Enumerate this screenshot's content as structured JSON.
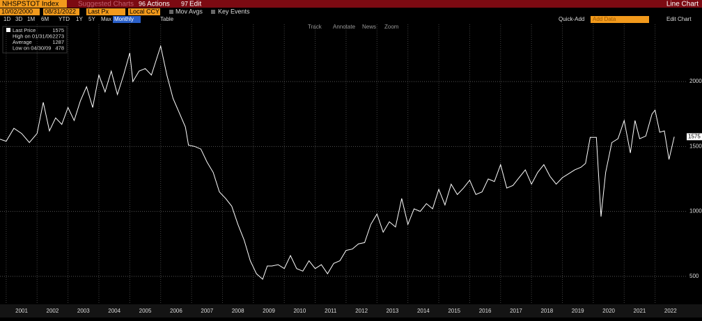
{
  "toolbar": {
    "ticker": "NHSPSTOT Index",
    "suggested": "Suggested Charts",
    "actions_num": "96",
    "actions": "Actions",
    "edit_num": "97",
    "edit": "Edit",
    "view": "Line Chart"
  },
  "controls": {
    "start": "10/02/2000",
    "end": "08/31/2022",
    "field": "Last Px",
    "currency": "Local CCY",
    "mov_avgs": "Mov Avgs",
    "key_events": "Key Events",
    "ranges": [
      "1D",
      "3D",
      "1M",
      "6M",
      "YTD",
      "1Y",
      "5Y",
      "Max"
    ],
    "period": "Monthly",
    "table": "Table",
    "quick_add": "Quick-Add",
    "add_data": "Add Data",
    "edit_chart": "Edit Chart",
    "tools": [
      "Track",
      "Annotate",
      "News",
      "Zoom"
    ]
  },
  "chart_data": {
    "type": "line",
    "legend": [
      {
        "label": "Last Price",
        "value": 1575
      },
      {
        "label": "High on 01/31/06",
        "value": 2273
      },
      {
        "label": "Average",
        "value": 1287
      },
      {
        "label": "Low on 04/30/09",
        "value": 478
      }
    ],
    "series": [
      {
        "color": "#ffffff",
        "x": [
          2000.75,
          2001.0,
          2001.25,
          2001.5,
          2001.75,
          2002.0,
          2002.2,
          2002.4,
          2002.6,
          2002.8,
          2003.0,
          2003.2,
          2003.4,
          2003.6,
          2003.8,
          2004.0,
          2004.2,
          2004.4,
          2004.6,
          2004.8,
          2005.0,
          2005.1,
          2005.3,
          2005.5,
          2005.7,
          2006.0,
          2006.2,
          2006.4,
          2006.6,
          2006.8,
          2006.9,
          2007.1,
          2007.3,
          2007.5,
          2007.7,
          2007.9,
          2008.1,
          2008.3,
          2008.5,
          2008.7,
          2008.9,
          2009.1,
          2009.3,
          2009.45,
          2009.6,
          2009.8,
          2010.0,
          2010.2,
          2010.4,
          2010.6,
          2010.8,
          2011.0,
          2011.2,
          2011.4,
          2011.6,
          2011.8,
          2012.0,
          2012.2,
          2012.4,
          2012.6,
          2012.8,
          2013.0,
          2013.2,
          2013.4,
          2013.6,
          2013.8,
          2014.0,
          2014.2,
          2014.4,
          2014.6,
          2014.8,
          2015.0,
          2015.2,
          2015.4,
          2015.6,
          2015.8,
          2016.0,
          2016.2,
          2016.4,
          2016.6,
          2016.8,
          2017.0,
          2017.2,
          2017.4,
          2017.6,
          2017.8,
          2018.0,
          2018.2,
          2018.4,
          2018.6,
          2018.8,
          2019.0,
          2019.2,
          2019.4,
          2019.6,
          2019.75,
          2019.9,
          2020.1,
          2020.25,
          2020.4,
          2020.6,
          2020.8,
          2021.0,
          2021.2,
          2021.35,
          2021.5,
          2021.7,
          2021.9,
          2022.0,
          2022.15,
          2022.3,
          2022.45,
          2022.62
        ],
        "values": [
          1560,
          1540,
          1640,
          1600,
          1530,
          1600,
          1840,
          1620,
          1720,
          1670,
          1800,
          1700,
          1850,
          1960,
          1800,
          2050,
          1920,
          2080,
          1900,
          2050,
          2220,
          2000,
          2080,
          2100,
          2050,
          2273,
          2050,
          1870,
          1760,
          1650,
          1510,
          1500,
          1480,
          1380,
          1300,
          1150,
          1100,
          1040,
          900,
          780,
          620,
          520,
          478,
          580,
          580,
          590,
          560,
          660,
          560,
          540,
          620,
          560,
          590,
          520,
          600,
          620,
          700,
          710,
          750,
          760,
          900,
          980,
          840,
          920,
          880,
          1100,
          900,
          1020,
          1000,
          1060,
          1020,
          1170,
          1050,
          1210,
          1130,
          1180,
          1240,
          1130,
          1150,
          1250,
          1230,
          1360,
          1180,
          1200,
          1260,
          1320,
          1210,
          1300,
          1360,
          1270,
          1210,
          1260,
          1290,
          1320,
          1340,
          1370,
          1570,
          1570,
          960,
          1300,
          1530,
          1560,
          1700,
          1450,
          1700,
          1560,
          1580,
          1750,
          1780,
          1610,
          1620,
          1400,
          1575
        ]
      }
    ],
    "xlim": [
      2000.8,
      2023.0
    ],
    "xticks": [
      2001,
      2002,
      2003,
      2004,
      2005,
      2006,
      2007,
      2008,
      2009,
      2010,
      2011,
      2012,
      2013,
      2014,
      2015,
      2016,
      2017,
      2018,
      2019,
      2020,
      2021,
      2022
    ],
    "ylim": [
      285,
      2440
    ],
    "yticks": [
      500,
      1000,
      1500,
      2000
    ],
    "grid": true
  }
}
